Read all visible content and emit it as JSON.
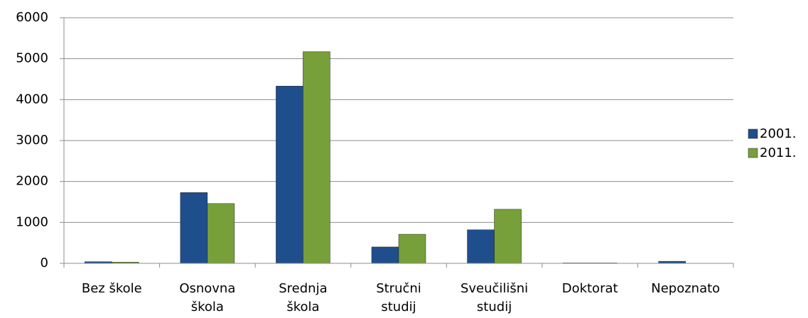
{
  "chart_data": {
    "type": "bar",
    "categories": [
      "Bez škole",
      "Osnovna škola",
      "Srednja škola",
      "Stručni studij",
      "Sveučilišni studij",
      "Doktorat",
      "Nepoznato"
    ],
    "series": [
      {
        "name": "2001.",
        "color": "#1f4e8c",
        "values": [
          40,
          1730,
          4330,
          400,
          820,
          10,
          50
        ]
      },
      {
        "name": "2011.",
        "color": "#77a03a",
        "values": [
          30,
          1460,
          5170,
          710,
          1320,
          10,
          0
        ]
      }
    ],
    "ylim": [
      0,
      6000
    ],
    "yticks": [
      0,
      1000,
      2000,
      3000,
      4000,
      5000,
      6000
    ],
    "grid": true,
    "legend": "right"
  }
}
